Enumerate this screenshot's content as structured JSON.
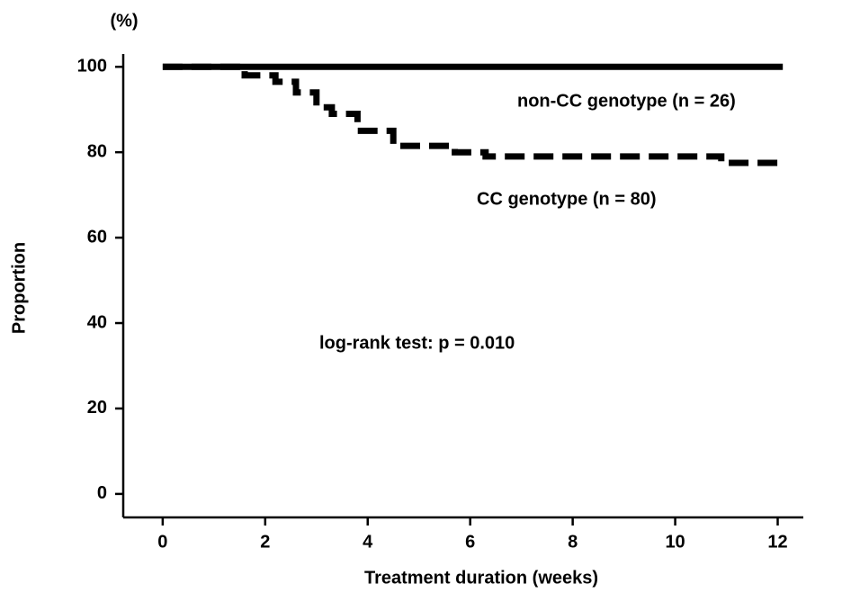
{
  "chart_data": {
    "type": "line",
    "y_unit": "(%)",
    "xlabel": "Treatment duration (weeks)",
    "ylabel": "Proportion",
    "annotations": [
      "log-rank test: p = 0.010"
    ],
    "xlim": [
      -0.77,
      12.5
    ],
    "xticks": [
      0,
      2,
      4,
      6,
      8,
      10,
      12
    ],
    "ylim": [
      -5.5,
      103
    ],
    "yticks": [
      0,
      20,
      40,
      60,
      80,
      100
    ],
    "series": [
      {
        "name": "non-CC genotype (n = 26)",
        "color": "#000000",
        "linestyle": "solid",
        "x": [
          0,
          12.1
        ],
        "values": [
          100,
          100
        ]
      },
      {
        "name": "CC genotype (n = 80)",
        "color": "#000000",
        "linestyle": "dashed",
        "x": [
          0,
          1.6,
          1.6,
          2.2,
          2.2,
          2.6,
          2.6,
          3.0,
          3.0,
          3.3,
          3.3,
          3.8,
          3.8,
          4.5,
          4.5,
          5.7,
          5.7,
          6.3,
          6.3,
          10.9,
          10.9,
          12.1
        ],
        "values": [
          100,
          100,
          98,
          98,
          96.5,
          96.5,
          94,
          94,
          90.5,
          90.5,
          89,
          89,
          85,
          85,
          81.5,
          81.5,
          80,
          80,
          79,
          79,
          77.5,
          77.5
        ]
      }
    ]
  }
}
